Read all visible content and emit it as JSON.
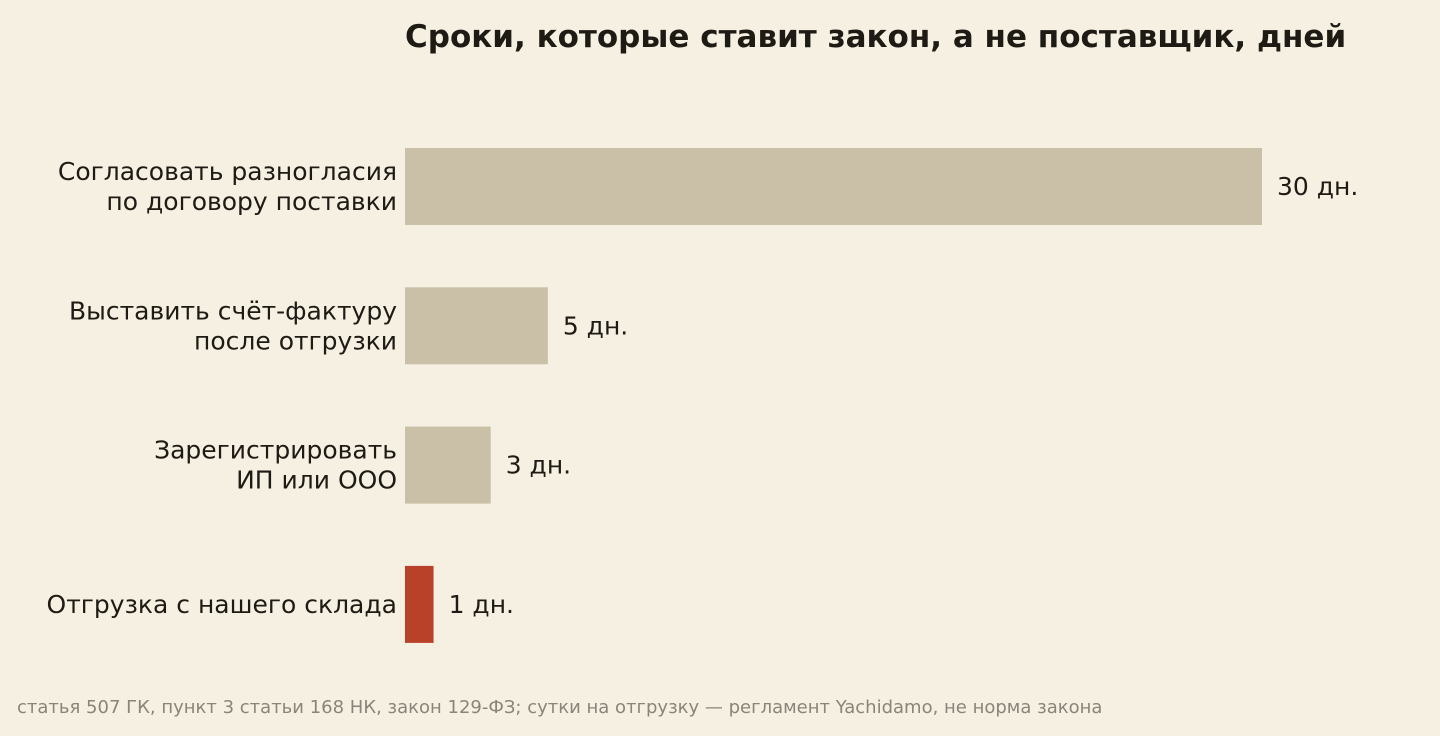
{
  "chart_data": {
    "type": "bar",
    "orientation": "horizontal",
    "title": "Сроки, которые ставит закон, а не поставщик, дней",
    "categories": [
      [
        "Согласовать разногласия",
        "по договору поставки"
      ],
      [
        "Выставить счёт-фактуру",
        "после отгрузки"
      ],
      [
        "Зарегистрировать",
        "ИП или ООО"
      ],
      [
        "Отгрузка с нашего склада"
      ]
    ],
    "values": [
      30,
      5,
      3,
      1
    ],
    "value_labels": [
      "30 дн.",
      "5 дн.",
      "3 дн.",
      "1 дн."
    ],
    "bar_colors": [
      "#c9c0a7",
      "#c9c0a7",
      "#c9c0a7",
      "#b94129"
    ],
    "xlim": [
      0,
      30
    ],
    "grid": false,
    "legend": "none",
    "source": "статья 507 ГК, пункт 3 статьи 168 НК, закон 129-ФЗ; сутки на отгрузку — регламент Yachidamo, не норма закона"
  }
}
